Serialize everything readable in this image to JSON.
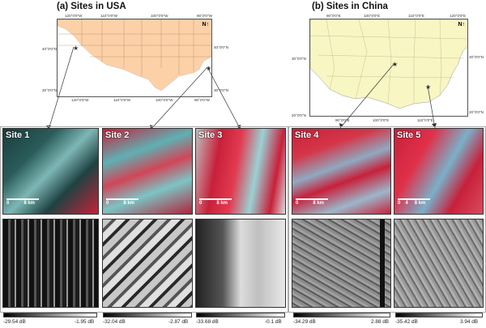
{
  "panels": {
    "usa": {
      "title": "(a) Sites in USA",
      "top_coords": [
        "120°0'0\"W",
        "110°0'0\"W",
        "100°0'0\"W",
        "90°0'0\"W"
      ],
      "bottom_coords": [
        "120°0'0\"W",
        "110°0'0\"W",
        "100°0'0\"W",
        "90°0'0\"W"
      ],
      "left_coords": [
        "40°0'0\"N",
        "30°0'0\"N"
      ],
      "right_coords": [
        "40°0'0\"N",
        "30°0'0\"N"
      ],
      "map_color": "#fcd1a8"
    },
    "china": {
      "title": "(b) Sites in China",
      "top_coords": [
        "90°0'0\"E",
        "100°0'0\"E",
        "110°0'0\"E",
        "120°0'0\"E"
      ],
      "bottom_coords": [
        "90°0'0\"E",
        "100°0'0\"E",
        "110°0'0\"E"
      ],
      "left_coords": [
        "30°0'0\"N",
        "20°0'0\"N"
      ],
      "right_coords": [
        "30°0'0\"N",
        "20°0'0\"N"
      ],
      "map_color": "#f8f6c3"
    }
  },
  "sites": [
    {
      "name": "Site 1",
      "scale": "8 km",
      "scale_zero": "0",
      "db_min": "-29.54 dB",
      "db_max": "-1.95 dB"
    },
    {
      "name": "Site 2",
      "scale": "8 km",
      "scale_zero": "0",
      "db_min": "-32.04 dB",
      "db_max": "-2.87 dB"
    },
    {
      "name": "Site 3",
      "scale": "8 km",
      "scale_zero": "0",
      "db_min": "-33.68 dB",
      "db_max": "-0.1 dB"
    },
    {
      "name": "Site 4",
      "scale": "8 km",
      "scale_zero": "0",
      "db_min": "-34.29 dB",
      "db_max": "2.88 dB"
    },
    {
      "name": "Site 5",
      "scale": "8 km",
      "scale_zero": "0",
      "scale_mid": "4",
      "db_min": "-35.42 dB",
      "db_max": "3.94 dB"
    }
  ],
  "colors": {
    "false_color_red": "#c8203a",
    "false_color_cyan": "#6fc2c4",
    "sar_dark": "#1c1c1c",
    "sar_light": "#dcdcdc"
  }
}
